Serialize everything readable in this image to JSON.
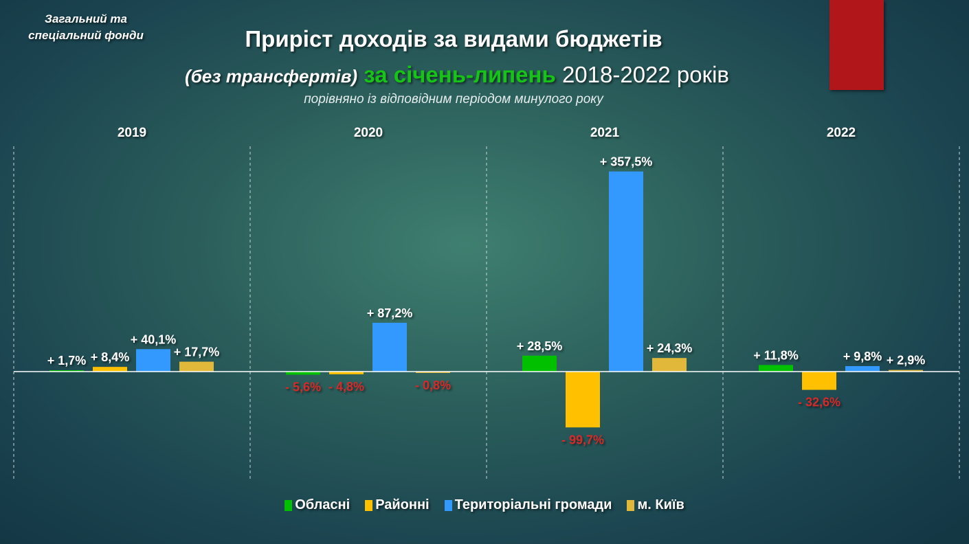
{
  "header": {
    "fund_label": "Загальний та спеціальний фонди",
    "title_line1": "Приріст доходів за видами бюджетів",
    "title_line2_part1": "(без трансфертів)",
    "title_line2_part2": "за січень-липень",
    "title_line2_part3": "2018-2022 років",
    "subtitle": "порівняно із відповідним періодом минулого року"
  },
  "colors": {
    "oblasni": "#00c000",
    "raionni": "#ffc000",
    "hromady": "#3399ff",
    "kyiv": "#e2b83a",
    "negative_label": "#d42a2a",
    "accent_bar": "#b0161a"
  },
  "chart_data": {
    "type": "bar",
    "title": "Приріст доходів за видами бюджетів",
    "categories": [
      "2019",
      "2020",
      "2021",
      "2022"
    ],
    "series": [
      {
        "name": "Обласні",
        "values": [
          1.7,
          -5.6,
          28.5,
          11.8
        ],
        "labels": [
          "+ 1,7%",
          "- 5,6%",
          "+ 28,5%",
          "+ 11,8%"
        ]
      },
      {
        "name": "Районні",
        "values": [
          8.4,
          -4.8,
          -99.7,
          -32.6
        ],
        "labels": [
          "+ 8,4%",
          "- 4,8%",
          "- 99,7%",
          "- 32,6%"
        ]
      },
      {
        "name": "Територіальні громади",
        "values": [
          40.1,
          87.2,
          357.5,
          9.8
        ],
        "labels": [
          "+ 40,1%",
          "+ 87,2%",
          "+ 357,5%",
          "+ 9,8%"
        ]
      },
      {
        "name": "м. Київ",
        "values": [
          17.7,
          -0.8,
          24.3,
          2.9
        ],
        "labels": [
          "+ 17,7%",
          "- 0,8%",
          "+ 24,3%",
          "+ 2,9%"
        ]
      }
    ],
    "unit": "%",
    "grid": false,
    "legend_position": "bottom"
  }
}
